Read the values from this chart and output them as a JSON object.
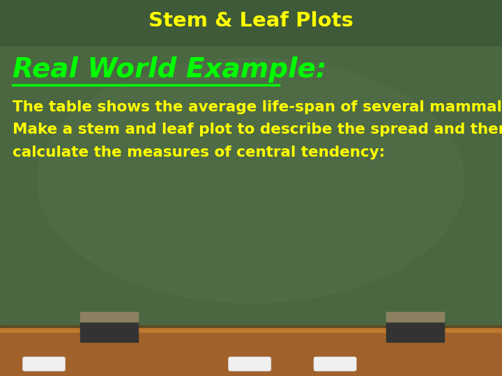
{
  "title": "Stem & Leaf Plots",
  "title_color": "#FFFF00",
  "title_fontsize": 21,
  "heading": "Real World Example:",
  "heading_color": "#00FF00",
  "heading_fontsize": 28,
  "body_lines": [
    "The table shows the average life-span of several mammals.",
    "Make a stem and leaf plot to describe the spread and then",
    "calculate the measures of central tendency:"
  ],
  "body_color": "#FFFF00",
  "body_fontsize": 15.5,
  "bg_top_color": "#4A6741",
  "bg_bottom_color": "#3A5535",
  "board_main_color": "#4A6741",
  "ledge_color": "#A0622A",
  "ledge_top_color": "#C07830",
  "chalk_color": "#F0F0F0",
  "eraser_dark_color": "#333333",
  "eraser_top_color": "#8B8060",
  "title_bg_color": "#3A5535",
  "glow_color": "#5A7A52"
}
